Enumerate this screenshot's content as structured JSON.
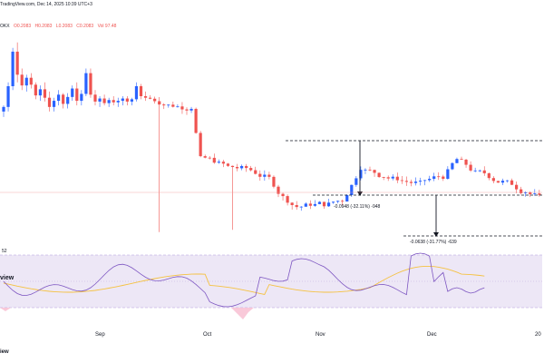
{
  "header": {
    "source_line": "TradingView.com, Dec 14, 2025 10:39 UTC+3",
    "exchange": "OKX",
    "ohlc": {
      "open": "O0.2083",
      "high": "H0.2083",
      "low": "L0.2083",
      "close": "C0.2083",
      "volume": "Vol 97.48"
    }
  },
  "brand_text": "iew",
  "side_label": "view",
  "rsi_label": "52",
  "colors": {
    "up": "#2962ff",
    "down": "#ef5350",
    "rsi_line": "#7e57c2",
    "rsi_ma": "#f5c242",
    "rsi_fill": "#ede7f6",
    "dash": "#131722"
  },
  "chart_data": {
    "type": "candlestick",
    "x_axis": {
      "ticks": [
        "Sep",
        "Oct",
        "Nov",
        "Dec",
        "20"
      ]
    },
    "annotations": [
      {
        "kind": "measure",
        "label": "-0.0948 (-32.11%) -948"
      },
      {
        "kind": "measure",
        "label": "-0.0638 (-31.77%) -639"
      }
    ],
    "levels": {
      "upper": 0.295,
      "middle": 0.2005,
      "lower": 0.137
    },
    "candles_first": [
      [
        0.262,
        0.27,
        0.255,
        0.268
      ],
      [
        0.268,
        0.3,
        0.262,
        0.295
      ],
      [
        0.295,
        0.345,
        0.29,
        0.34
      ],
      [
        0.34,
        0.352,
        0.3,
        0.31
      ],
      [
        0.31,
        0.318,
        0.29,
        0.296
      ],
      [
        0.296,
        0.31,
        0.288,
        0.306
      ],
      [
        0.306,
        0.312,
        0.292,
        0.297
      ],
      [
        0.297,
        0.3,
        0.278,
        0.283
      ],
      [
        0.283,
        0.296,
        0.276,
        0.291
      ],
      [
        0.291,
        0.3,
        0.275,
        0.28
      ],
      [
        0.28,
        0.288,
        0.262,
        0.268
      ],
      [
        0.268,
        0.28,
        0.262,
        0.276
      ],
      [
        0.276,
        0.29,
        0.27,
        0.284
      ],
      [
        0.284,
        0.286,
        0.266,
        0.272
      ],
      [
        0.272,
        0.286,
        0.266,
        0.281
      ],
      [
        0.281,
        0.296,
        0.276,
        0.292
      ],
      [
        0.292,
        0.3,
        0.27,
        0.276
      ],
      [
        0.276,
        0.29,
        0.27,
        0.285
      ],
      [
        0.285,
        0.318,
        0.282,
        0.312
      ],
      [
        0.312,
        0.318,
        0.28,
        0.284
      ],
      [
        0.284,
        0.29,
        0.27,
        0.275
      ],
      [
        0.275,
        0.282,
        0.268,
        0.279
      ],
      [
        0.279,
        0.284,
        0.27,
        0.273
      ],
      [
        0.273,
        0.28,
        0.268,
        0.277
      ],
      [
        0.277,
        0.282,
        0.27,
        0.274
      ],
      [
        0.274,
        0.28,
        0.268,
        0.276
      ],
      [
        0.276,
        0.282,
        0.27,
        0.279
      ],
      [
        0.279,
        0.282,
        0.27,
        0.275
      ],
      [
        0.275,
        0.28,
        0.27,
        0.278
      ],
      [
        0.278,
        0.3,
        0.275,
        0.295
      ],
      [
        0.295,
        0.298,
        0.278,
        0.282
      ],
      [
        0.282,
        0.288,
        0.276,
        0.28
      ]
    ]
  }
}
